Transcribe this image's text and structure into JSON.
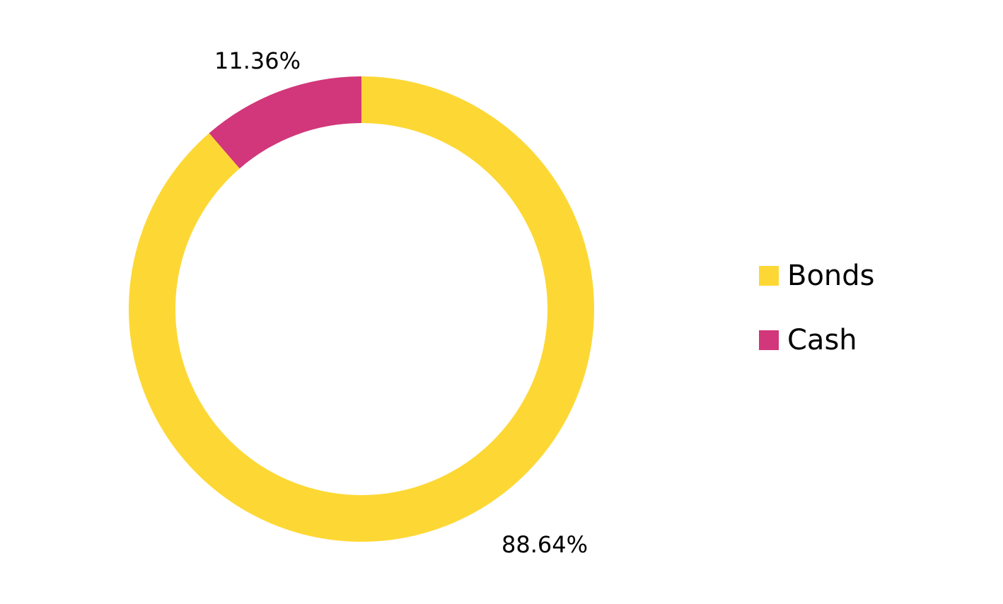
{
  "chart_data": {
    "type": "pie",
    "variant": "donut",
    "title": "",
    "categories": [
      "Bonds",
      "Cash"
    ],
    "values": [
      88.64,
      11.36
    ],
    "value_labels": [
      "88.64%",
      "11.36%"
    ],
    "colors": [
      "#FDD835",
      "#D1377A"
    ],
    "start_angle_deg": 0,
    "direction": "clockwise",
    "legend": {
      "position": "right",
      "items": [
        {
          "label": "Bonds",
          "color": "#FDD835"
        },
        {
          "label": "Cash",
          "color": "#D1377A"
        }
      ]
    }
  }
}
